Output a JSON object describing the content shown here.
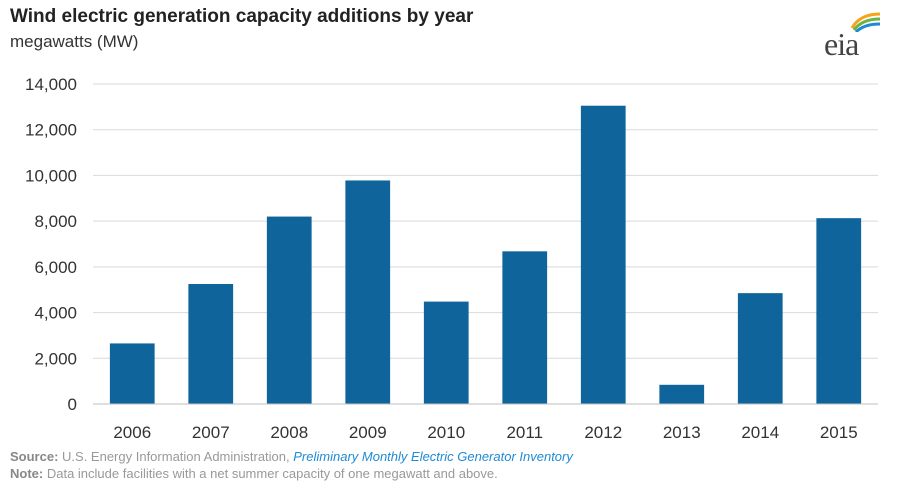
{
  "chart_data": {
    "type": "bar",
    "title": "Wind electric generation capacity additions by year",
    "subtitle": "megawatts (MW)",
    "categories": [
      "2006",
      "2007",
      "2008",
      "2009",
      "2010",
      "2011",
      "2012",
      "2013",
      "2014",
      "2015"
    ],
    "values": [
      2650,
      5250,
      8200,
      9780,
      4480,
      6680,
      13050,
      840,
      4850,
      8130
    ],
    "ylim": [
      0,
      14000
    ],
    "yticks": [
      0,
      2000,
      4000,
      6000,
      8000,
      10000,
      12000,
      14000
    ],
    "ytick_labels": [
      "0",
      "2,000",
      "4,000",
      "6,000",
      "8,000",
      "10,000",
      "12,000",
      "14,000"
    ],
    "grid": true,
    "bar_color": "#0f659b",
    "grid_color": "#d9d9d9"
  },
  "logo": {
    "text": "eia"
  },
  "footer": {
    "source_label": "Source:",
    "source_text": "U.S. Energy Information Administration,",
    "source_link": "Preliminary Monthly Electric Generator Inventory",
    "note_label": "Note:",
    "note_text": "Data include facilities with a net summer capacity of one megawatt and above."
  }
}
